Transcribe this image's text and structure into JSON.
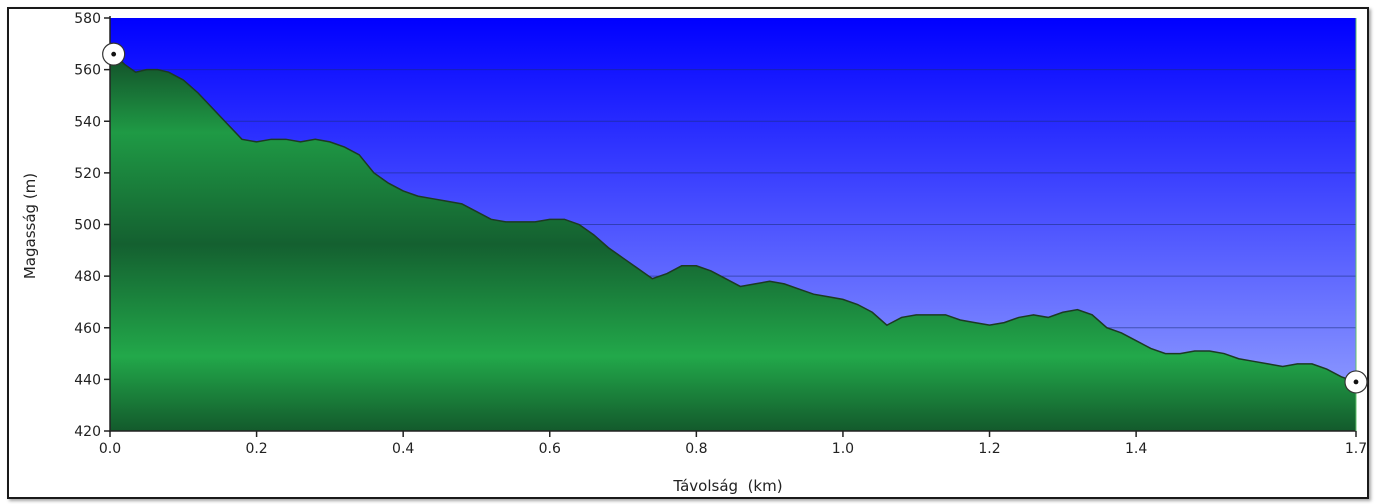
{
  "chart_data": {
    "type": "area",
    "title": "",
    "xlabel": "Távolság  (km)",
    "ylabel": "Magasság (m)",
    "xlim": [
      0,
      1.7
    ],
    "ylim": [
      420,
      580
    ],
    "x_ticks": [
      "0.0",
      "0.2",
      "0.4",
      "0.6",
      "0.8",
      "1.0",
      "1.2",
      "1.4",
      "1.7"
    ],
    "x_tick_values": [
      0,
      0.2,
      0.4,
      0.6,
      0.8,
      1.0,
      1.2,
      1.4,
      1.7
    ],
    "y_ticks": [
      "420",
      "440",
      "460",
      "480",
      "500",
      "520",
      "540",
      "560",
      "580"
    ],
    "y_tick_values": [
      420,
      440,
      460,
      480,
      500,
      520,
      540,
      560,
      580
    ],
    "grid": true,
    "colors": {
      "sky_top": "#0000ff",
      "sky_bottom": "#9aa8ff",
      "fill_light": "#22a84a",
      "fill_dark": "#13522a",
      "outline": "#1c3a22",
      "grid": "#1a2b7a"
    },
    "markers": [
      {
        "name": "start",
        "x": 0.005,
        "y": 566
      },
      {
        "name": "end",
        "x": 1.7,
        "y": 439
      }
    ],
    "series": [
      {
        "values_x": [
          0.0,
          0.005,
          0.02,
          0.035,
          0.05,
          0.065,
          0.08,
          0.1,
          0.12,
          0.14,
          0.16,
          0.18,
          0.2,
          0.22,
          0.24,
          0.26,
          0.28,
          0.3,
          0.32,
          0.34,
          0.36,
          0.38,
          0.4,
          0.42,
          0.44,
          0.46,
          0.48,
          0.5,
          0.52,
          0.54,
          0.56,
          0.58,
          0.6,
          0.62,
          0.64,
          0.66,
          0.68,
          0.7,
          0.72,
          0.74,
          0.76,
          0.78,
          0.8,
          0.82,
          0.84,
          0.86,
          0.88,
          0.9,
          0.92,
          0.94,
          0.96,
          0.98,
          1.0,
          1.02,
          1.04,
          1.06,
          1.08,
          1.1,
          1.12,
          1.14,
          1.16,
          1.18,
          1.2,
          1.22,
          1.24,
          1.26,
          1.28,
          1.3,
          1.32,
          1.34,
          1.36,
          1.38,
          1.4,
          1.42,
          1.44,
          1.46,
          1.48,
          1.5,
          1.52,
          1.54,
          1.56,
          1.58,
          1.6,
          1.62,
          1.64,
          1.66,
          1.68,
          1.7
        ],
        "values_y": [
          566,
          566,
          562,
          559,
          560,
          560,
          559,
          556,
          551,
          545,
          539,
          533,
          532,
          533,
          533,
          532,
          533,
          532,
          530,
          527,
          520,
          516,
          513,
          511,
          510,
          509,
          508,
          505,
          502,
          501,
          501,
          501,
          502,
          502,
          500,
          496,
          491,
          487,
          483,
          479,
          481,
          484,
          484,
          482,
          479,
          476,
          477,
          478,
          477,
          475,
          473,
          472,
          471,
          469,
          466,
          461,
          464,
          465,
          465,
          465,
          463,
          462,
          461,
          462,
          464,
          465,
          464,
          466,
          467,
          465,
          460,
          458,
          455,
          452,
          450,
          450,
          451,
          451,
          450,
          448,
          447,
          446,
          445,
          446,
          446,
          444,
          441,
          439
        ]
      }
    ]
  }
}
